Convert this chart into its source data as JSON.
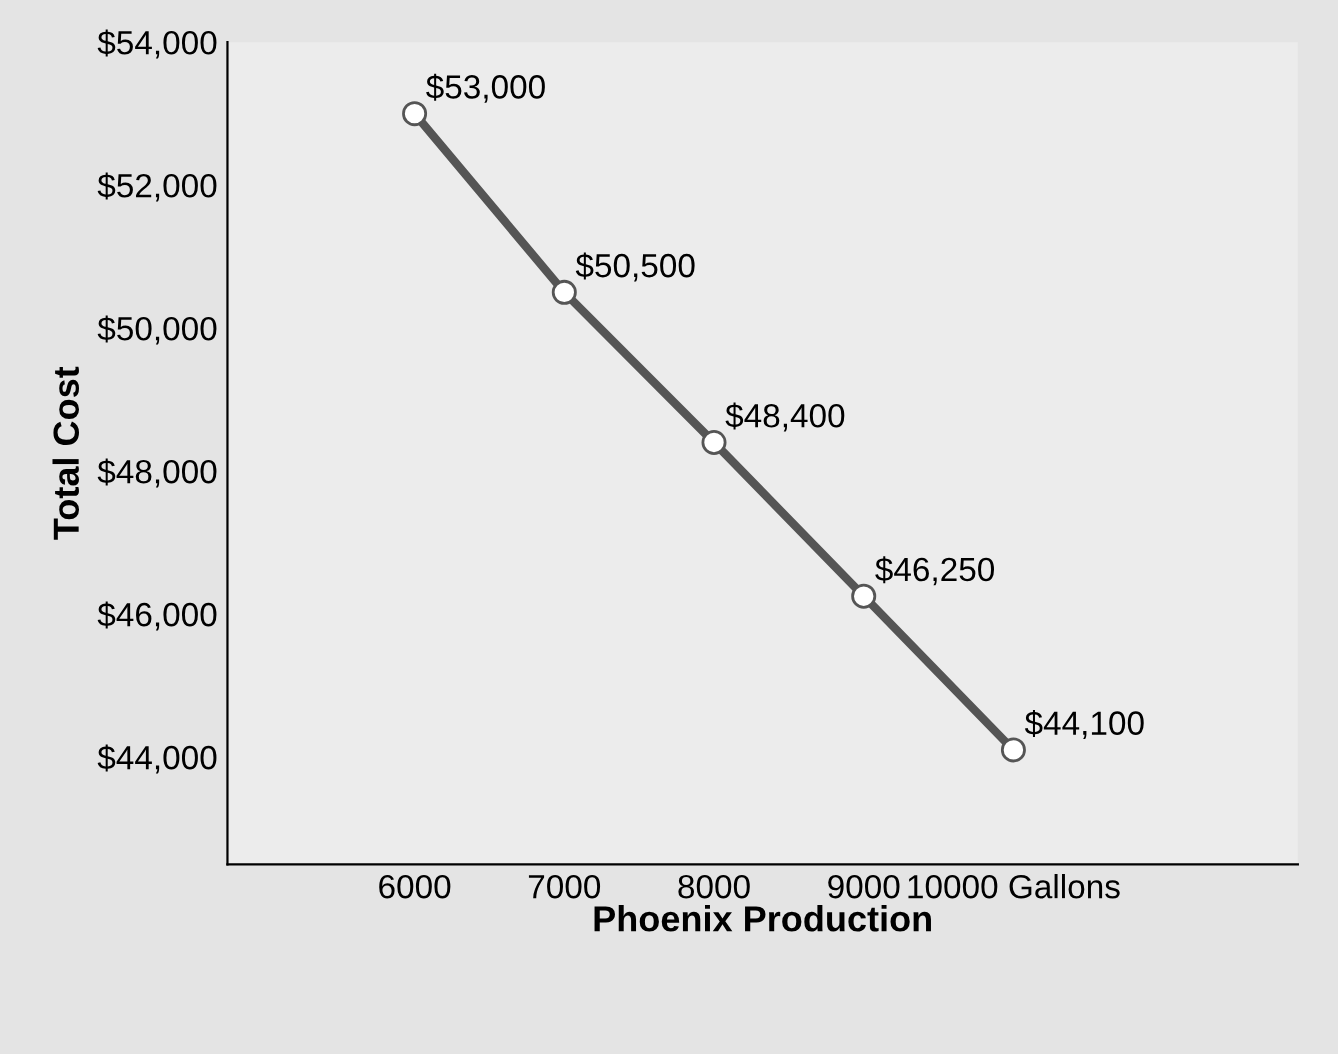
{
  "chart_data": {
    "type": "line",
    "xlabel": "Phoenix Production",
    "ylabel": "Total Cost",
    "x": [
      6000,
      7000,
      8000,
      9000,
      10000
    ],
    "series": [
      {
        "color": "#555555",
        "values": [
          53000,
          50500,
          48400,
          46250,
          44100
        ],
        "value_labels": [
          "$53,000",
          "$50,500",
          "$48,400",
          "$46,250",
          "$44,100"
        ]
      }
    ],
    "xlim": [
      4750,
      11900
    ],
    "ylim": [
      42500,
      54000
    ],
    "xticks": [
      6000,
      7000,
      8000,
      9000,
      {
        "value": 10000,
        "label": "10000 Gallons"
      }
    ],
    "yticks": [
      {
        "value": 44000,
        "label": "$44,000"
      },
      {
        "value": 46000,
        "label": "$46,000"
      },
      {
        "value": 48000,
        "label": "$48,000"
      },
      {
        "value": 50000,
        "label": "$50,000"
      },
      {
        "value": 52000,
        "label": "$52,000"
      },
      {
        "value": 54000,
        "label": "$54,000"
      }
    ],
    "marker": "circle",
    "line_style": "solid",
    "grid": false,
    "legend": false
  }
}
